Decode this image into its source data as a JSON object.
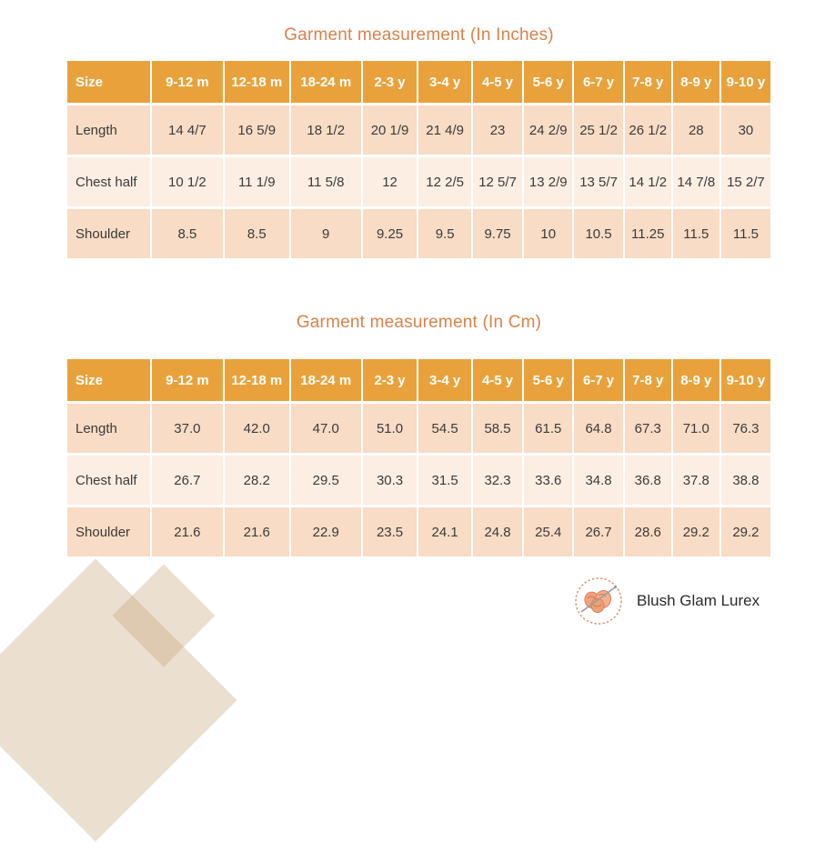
{
  "colors": {
    "header_bg": "#e9a23b",
    "header_text": "#ffffff",
    "row_peach": "#f8dcc5",
    "row_light": "#fceee3",
    "title_text": "#dc8147",
    "cell_text": "#3b3b3b",
    "diamond_tan": "rgba(199,162,117,0.35)",
    "logo_ring": "#d98e68",
    "logo_yarn": "#efa27e",
    "logo_needle": "#9b9b9b"
  },
  "tables": [
    {
      "title": "Garment measurement (In Inches)",
      "columns": [
        "Size",
        "9-12 m",
        "12-18 m",
        "18-24 m",
        "2-3 y",
        "3-4 y",
        "4-5 y",
        "5-6 y",
        "6-7 y",
        "7-8 y",
        "8-9 y",
        "9-10 y"
      ],
      "rows": [
        {
          "label": "Length",
          "values": [
            "14 4/7",
            "16 5/9",
            "18 1/2",
            "20 1/9",
            "21 4/9",
            "23",
            "24 2/9",
            "25 1/2",
            "26 1/2",
            "28",
            "30"
          ]
        },
        {
          "label": "Chest half",
          "values": [
            "10 1/2",
            "11 1/9",
            "11 5/8",
            "12",
            "12 2/5",
            "12 5/7",
            "13 2/9",
            "13 5/7",
            "14 1/2",
            "14 7/8",
            "15 2/7"
          ]
        },
        {
          "label": "Shoulder",
          "values": [
            "8.5",
            "8.5",
            "9",
            "9.25",
            "9.5",
            "9.75",
            "10",
            "10.5",
            "11.25",
            "11.5",
            "11.5"
          ]
        }
      ]
    },
    {
      "title": "Garment measurement (In Cm)",
      "columns": [
        "Size",
        "9-12 m",
        "12-18 m",
        "18-24 m",
        "2-3 y",
        "3-4 y",
        "4-5 y",
        "5-6 y",
        "6-7 y",
        "7-8 y",
        "8-9 y",
        "9-10 y"
      ],
      "rows": [
        {
          "label": "Length",
          "values": [
            "37.0",
            "42.0",
            "47.0",
            "51.0",
            "54.5",
            "58.5",
            "61.5",
            "64.8",
            "67.3",
            "71.0",
            "76.3"
          ]
        },
        {
          "label": "Chest half",
          "values": [
            "26.7",
            "28.2",
            "29.5",
            "30.3",
            "31.5",
            "32.3",
            "33.6",
            "34.8",
            "36.8",
            "37.8",
            "38.8"
          ]
        },
        {
          "label": "Shoulder",
          "values": [
            "21.6",
            "21.6",
            "22.9",
            "23.5",
            "24.1",
            "24.8",
            "25.4",
            "26.7",
            "28.6",
            "29.2",
            "29.2"
          ]
        }
      ]
    }
  ],
  "footer": {
    "brand": "Blush Glam Lurex"
  },
  "layout": {
    "column_widths_pct": [
      12.1,
      10.4,
      9.4,
      10.3,
      7.9,
      7.7,
      7.2,
      7.1,
      7.1,
      6.8,
      6.8,
      7.2
    ]
  }
}
